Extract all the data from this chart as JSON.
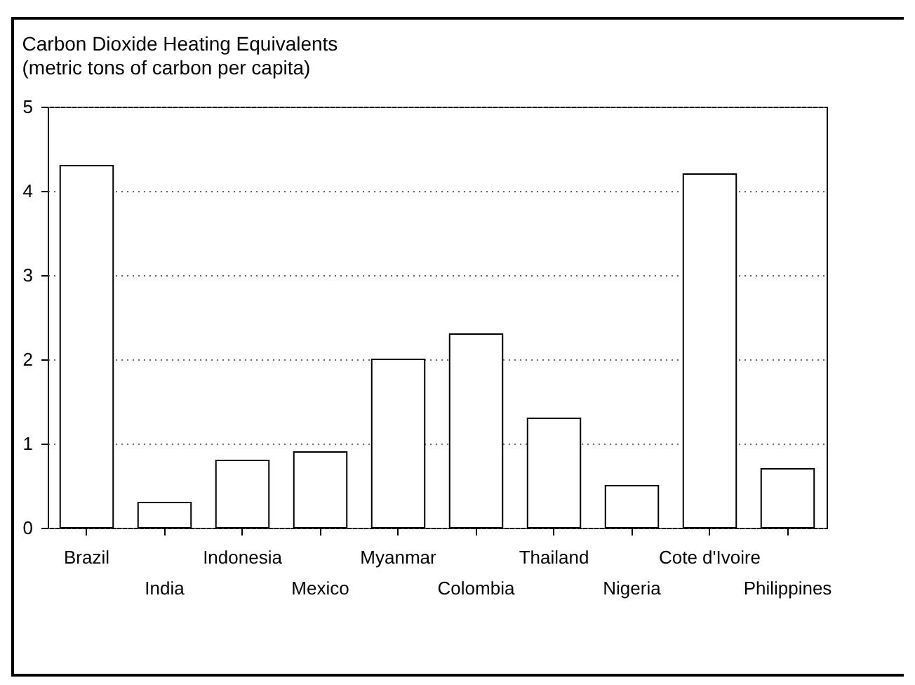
{
  "chart_data": {
    "type": "bar",
    "title": "Carbon Dioxide Heating Equivalents",
    "subtitle": "(metric tons of carbon per capita)",
    "categories": [
      "Brazil",
      "India",
      "Indonesia",
      "Mexico",
      "Myanmar",
      "Colombia",
      "Thailand",
      "Nigeria",
      "Cote d'Ivoire",
      "Philippines"
    ],
    "values": [
      4.3,
      0.3,
      0.8,
      0.9,
      2.0,
      2.3,
      1.3,
      0.5,
      4.2,
      0.7
    ],
    "color": "#ffffff",
    "ylim": [
      0,
      5
    ],
    "yticks": [
      0,
      1,
      2,
      3,
      4,
      5
    ],
    "grid": "y"
  }
}
